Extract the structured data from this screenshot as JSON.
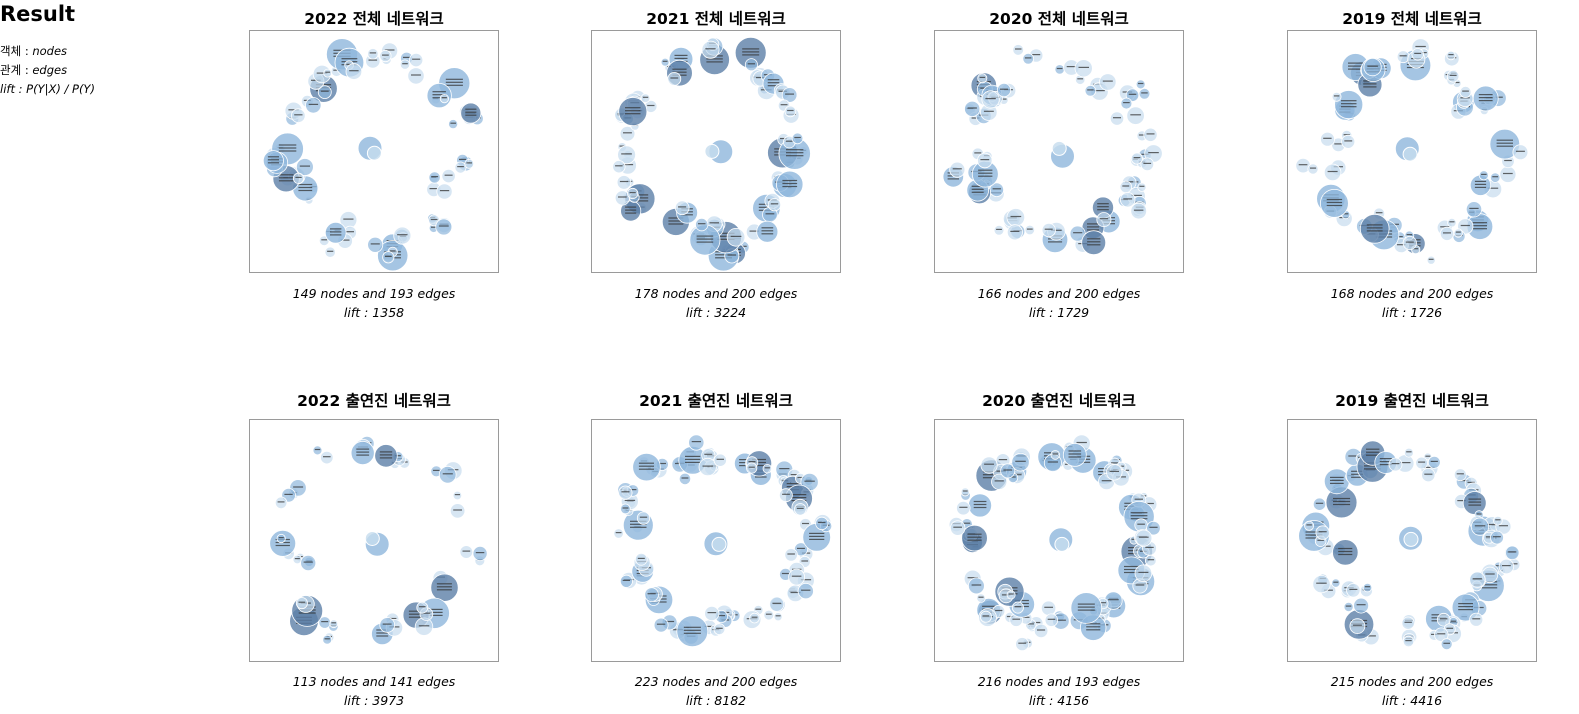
{
  "header": {
    "title": "Result"
  },
  "legend": [
    {
      "term": "객체",
      "sep": " : ",
      "value": "nodes"
    },
    {
      "term": "관계",
      "sep": " : ",
      "value": "edges"
    },
    {
      "term": "lift",
      "sep": " : ",
      "value": "P(Y|X) / P(Y)"
    }
  ],
  "panels": [
    {
      "title": "2022 전체 네트워크",
      "summary": "149 nodes and 193 edges",
      "lift": "lift : 1358",
      "nodes": 149,
      "edges": 193
    },
    {
      "title": "2021 전체 네트워크",
      "summary": "178 nodes and 200 edges",
      "lift": "lift : 3224",
      "nodes": 178,
      "edges": 200
    },
    {
      "title": "2020 전체 네트워크",
      "summary": "166 nodes and 200 edges",
      "lift": "lift : 1729",
      "nodes": 166,
      "edges": 200
    },
    {
      "title": "2019 전체 네트워크",
      "summary": "168 nodes and 200 edges",
      "lift": "lift : 1726",
      "nodes": 168,
      "edges": 200
    },
    {
      "title": "2022 출연진 네트워크",
      "summary": "113 nodes and 141 edges",
      "lift": "lift : 3973",
      "nodes": 113,
      "edges": 141
    },
    {
      "title": "2021 출연진 네트워크",
      "summary": "223 nodes and 200 edges",
      "lift": "lift : 8182",
      "nodes": 223,
      "edges": 200
    },
    {
      "title": "2020 출연진 네트워크",
      "summary": "216 nodes and 193 edges",
      "lift": "lift : 4156",
      "nodes": 216,
      "edges": 193
    },
    {
      "title": "2019 출연진 네트워크",
      "summary": "215 nodes and 200 edges",
      "lift": "lift : 4416",
      "nodes": 215,
      "edges": 200
    }
  ],
  "colors": {
    "node_light": "#c6dcee",
    "node_mid": "#8fb7dc",
    "node_dark": "#5d7fa8",
    "frame": "#9a9a9a"
  }
}
